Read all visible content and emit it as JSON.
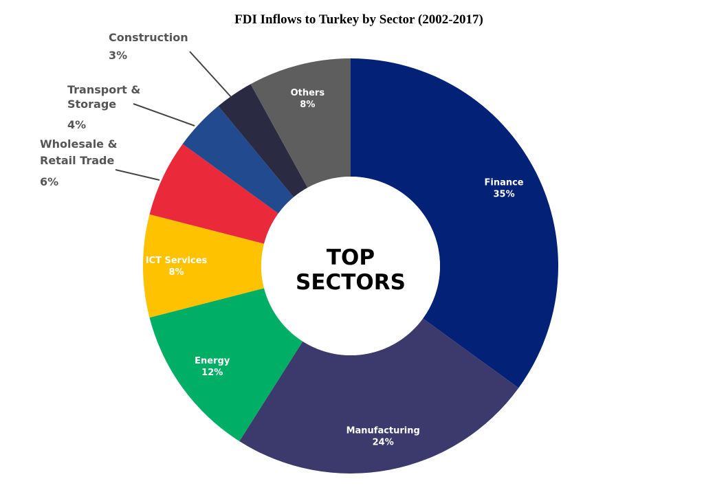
{
  "chart_data": {
    "type": "pie",
    "title": "FDI Inflows to Turkey by Sector (2002-2017)",
    "center_label": [
      "TOP",
      "SECTORS"
    ],
    "unit": "%",
    "slices": [
      {
        "label": "Finance",
        "value": 35,
        "value_text": "35%",
        "color": "#032277",
        "label_placement": "inside"
      },
      {
        "label": "Manufacturing",
        "value": 24,
        "value_text": "24%",
        "color": "#3C3A6C",
        "label_placement": "inside"
      },
      {
        "label": "Energy",
        "value": 12,
        "value_text": "12%",
        "color": "#00AE65",
        "label_placement": "inside"
      },
      {
        "label": "ICT Services",
        "value": 8,
        "value_text": "8%",
        "color": "#FEC200",
        "label_placement": "inside"
      },
      {
        "label": "Wholesale & Retail Trade",
        "value": 6,
        "value_text": "6%",
        "color": "#EA2A3A",
        "label_placement": "outside"
      },
      {
        "label": "Transport & Storage",
        "value": 4,
        "value_text": "4%",
        "color": "#224A8F",
        "label_placement": "outside"
      },
      {
        "label": "Construction",
        "value": 3,
        "value_text": "3%",
        "color": "#2A2A42",
        "label_placement": "outside"
      },
      {
        "label": "Others",
        "value": 8,
        "value_text": "8%",
        "color": "#5E5E5E",
        "label_placement": "inside"
      }
    ]
  }
}
